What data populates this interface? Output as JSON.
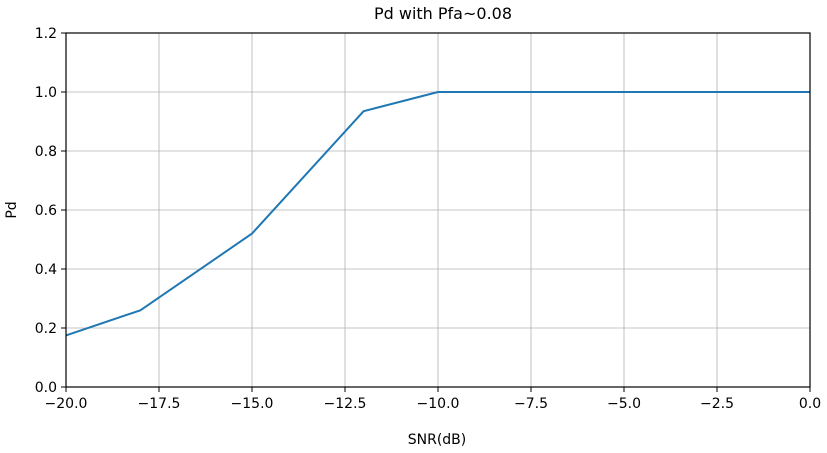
{
  "chart_data": {
    "type": "line",
    "title": "Pd with Pfa~0.08",
    "xlabel": "SNR(dB)",
    "ylabel": "Pd",
    "xlim": [
      -20.0,
      0.0
    ],
    "ylim": [
      0.0,
      1.2
    ],
    "xticks": [
      "-20.0",
      "-17.5",
      "-15.0",
      "-12.5",
      "-10.0",
      "-7.5",
      "-5.0",
      "-2.5",
      "0.0"
    ],
    "yticks": [
      "0.0",
      "0.2",
      "0.4",
      "0.6",
      "0.8",
      "1.0",
      "1.2"
    ],
    "grid": true,
    "series": [
      {
        "color": "#1f77b4",
        "x": [
          -20,
          -18,
          -15,
          -12,
          -10,
          -8,
          -6,
          -4,
          -2,
          0
        ],
        "y": [
          0.175,
          0.26,
          0.52,
          0.935,
          1.0,
          1.0,
          1.0,
          1.0,
          1.0,
          1.0
        ]
      }
    ]
  }
}
